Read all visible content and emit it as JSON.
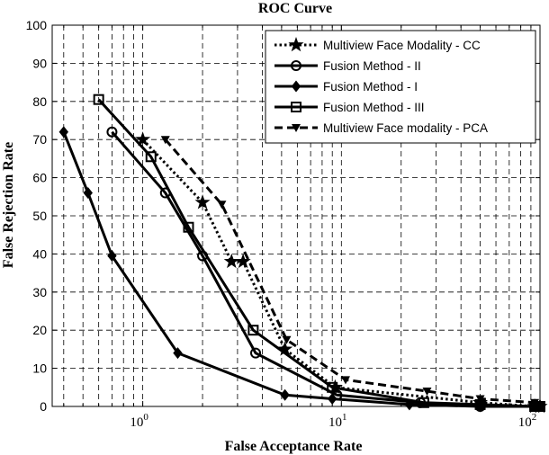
{
  "chart_data": {
    "type": "line",
    "title": "ROC Curve",
    "xlabel": "False Acceptance Rate",
    "ylabel": "False Rejection Rate",
    "x_scale": "log",
    "xlim": [
      0.35,
      100
    ],
    "ylim": [
      0,
      100
    ],
    "x_ticks": [
      1,
      10,
      100
    ],
    "x_tick_labels": [
      {
        "base": "10",
        "exp": "0"
      },
      {
        "base": "10",
        "exp": "1"
      },
      {
        "base": "10",
        "exp": "2"
      }
    ],
    "y_ticks": [
      0,
      10,
      20,
      30,
      40,
      50,
      60,
      70,
      80,
      90,
      100
    ],
    "grid": true,
    "legend_position": "top-right",
    "series": [
      {
        "name": "Multiview Face Modality - CC",
        "marker": "star",
        "dash": "dotted",
        "color": "#000000",
        "x": [
          1.0,
          2.0,
          2.8,
          3.2,
          5.2,
          9.3,
          50,
          94,
          100
        ],
        "y": [
          70,
          53.5,
          38,
          38,
          15,
          5,
          1,
          0,
          0
        ]
      },
      {
        "name": "Fusion Method - II",
        "marker": "circle",
        "dash": "solid",
        "color": "#000000",
        "x": [
          0.7,
          1.3,
          2.0,
          3.7,
          9.5,
          25,
          50,
          94,
          100
        ],
        "y": [
          72,
          56,
          39.5,
          14,
          3,
          1,
          0,
          0,
          0
        ]
      },
      {
        "name": "Fusion Method - I",
        "marker": "diamond",
        "dash": "solid",
        "color": "#000000",
        "x": [
          0.4,
          0.53,
          0.7,
          1.5,
          5.2,
          9.0,
          22,
          50,
          94,
          100
        ],
        "y": [
          72,
          56,
          39.5,
          14,
          3,
          2,
          0.5,
          0,
          0,
          0
        ]
      },
      {
        "name": "Fusion Method - III",
        "marker": "square",
        "dash": "solid",
        "color": "#000000",
        "x": [
          0.6,
          1.1,
          1.7,
          3.6,
          9.0,
          26,
          50,
          94,
          100
        ],
        "y": [
          80.5,
          65.5,
          47,
          20,
          5,
          1,
          0.5,
          0,
          0
        ]
      },
      {
        "name": "Multiview Face modality - PCA",
        "marker": "triangle-down",
        "dash": "dashed",
        "color": "#000000",
        "x": [
          1.3,
          2.5,
          5.3,
          10.5,
          27,
          50,
          94,
          100
        ],
        "y": [
          70,
          53,
          17.5,
          7,
          4,
          2,
          1,
          0
        ]
      }
    ]
  }
}
